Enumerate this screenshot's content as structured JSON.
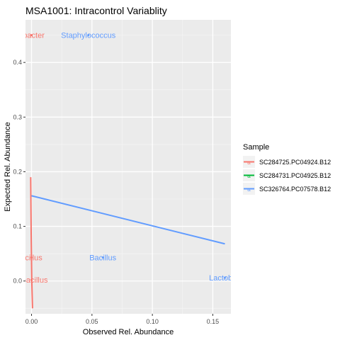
{
  "chart_data": {
    "type": "scatter",
    "title": "MSA1001: Intracontrol Variablity",
    "xlabel": "Observed Rel. Abundance",
    "ylabel": "Expected Rel. Abundance",
    "xlim": [
      -0.005,
      0.165
    ],
    "ylim": [
      -0.06,
      0.478
    ],
    "x_ticks": [
      0.0,
      0.05,
      0.1,
      0.15
    ],
    "x_tick_labels": [
      "0.00",
      "0.05",
      "0.10",
      "0.15"
    ],
    "y_ticks": [
      0.0,
      0.1,
      0.2,
      0.3,
      0.4
    ],
    "y_tick_labels": [
      "0.0",
      "0.1",
      "0.2",
      "0.3",
      "0.4"
    ],
    "grid": true,
    "panel_background": "#EBEBEB",
    "legend_position": "right",
    "legend_title": "Sample",
    "series": [
      {
        "name": "SC284725.PC04924.B12",
        "color": "#F8766D",
        "points": [
          {
            "x": 0.0,
            "y": 0.45,
            "label": "obacter"
          },
          {
            "x": 0.0,
            "y": 0.043,
            "label": "acillus"
          },
          {
            "x": 0.0,
            "y": 0.002,
            "label": "tobacillus"
          }
        ],
        "fit_line": [
          [
            -0.0007,
            0.19
          ],
          [
            -0.0003,
            0.085
          ],
          [
            0.0002,
            0.0
          ],
          [
            0.0008,
            -0.05
          ]
        ]
      },
      {
        "name": "SC284731.PC04925.B12",
        "color": "#00BA38",
        "points": [],
        "fit_line": []
      },
      {
        "name": "SC326764.PC07578.B12",
        "color": "#619CFF",
        "points": [
          {
            "x": 0.047,
            "y": 0.45,
            "label": "Staphylococcus"
          },
          {
            "x": 0.059,
            "y": 0.043,
            "label": "Bacillus"
          },
          {
            "x": 0.16,
            "y": 0.006,
            "label": "Lactobac"
          }
        ],
        "fit_line": [
          [
            0.0,
            0.156
          ],
          [
            0.16,
            0.068
          ]
        ]
      }
    ]
  }
}
